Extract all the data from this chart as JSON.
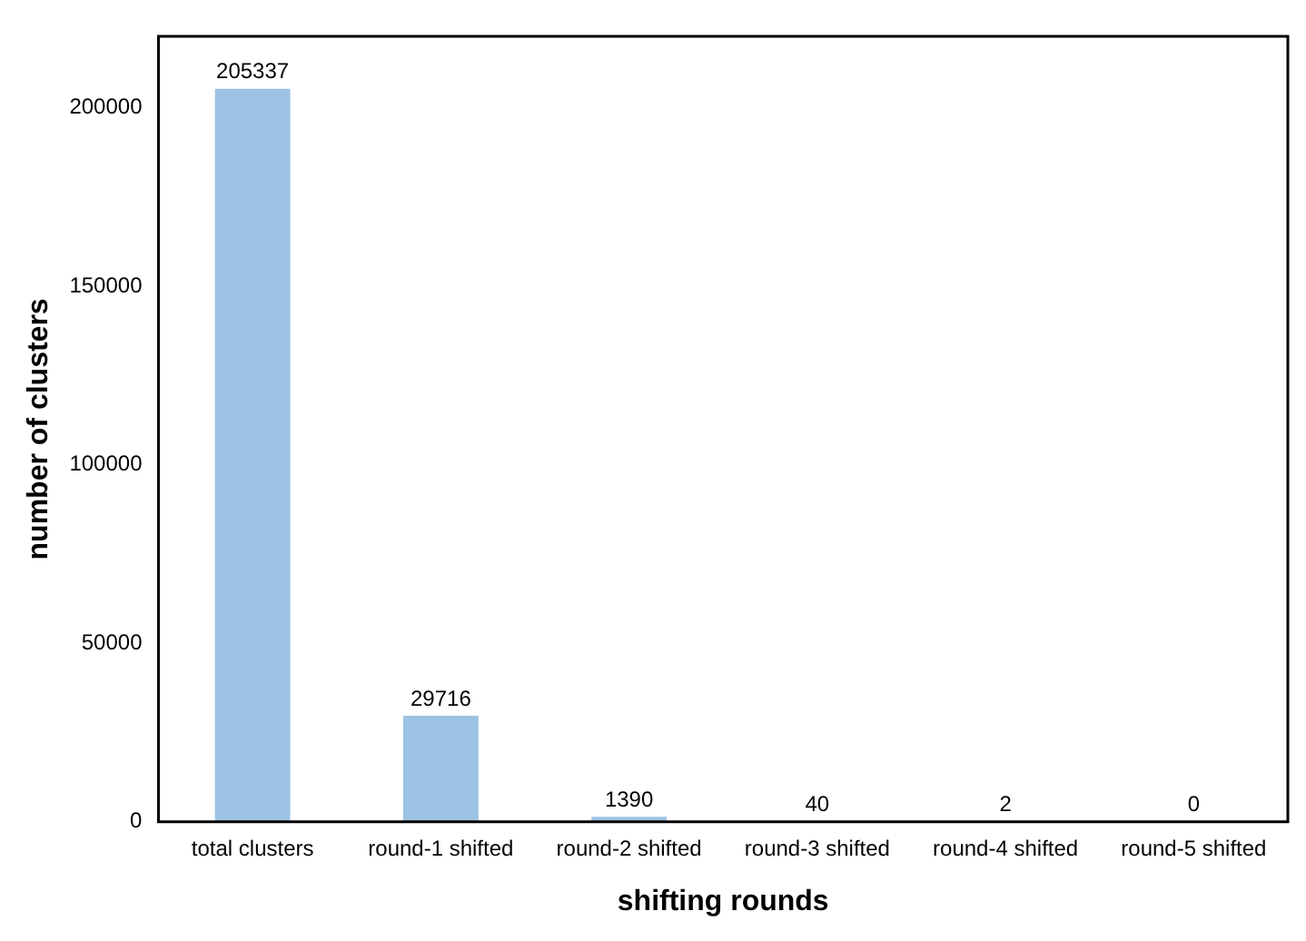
{
  "chart_data": {
    "type": "bar",
    "xlabel": "shifting rounds",
    "ylabel": "number of clusters",
    "categories": [
      "total clusters",
      "round-1 shifted",
      "round-2 shifted",
      "round-3 shifted",
      "round-4 shifted",
      "round-5 shifted"
    ],
    "values": [
      205337,
      29716,
      1390,
      40,
      2,
      0
    ],
    "color": "#9cc3e4",
    "ylim": [
      0,
      220000
    ],
    "yticks": [
      0,
      50000,
      100000,
      150000,
      200000
    ],
    "grid": false,
    "data_labels": true
  }
}
